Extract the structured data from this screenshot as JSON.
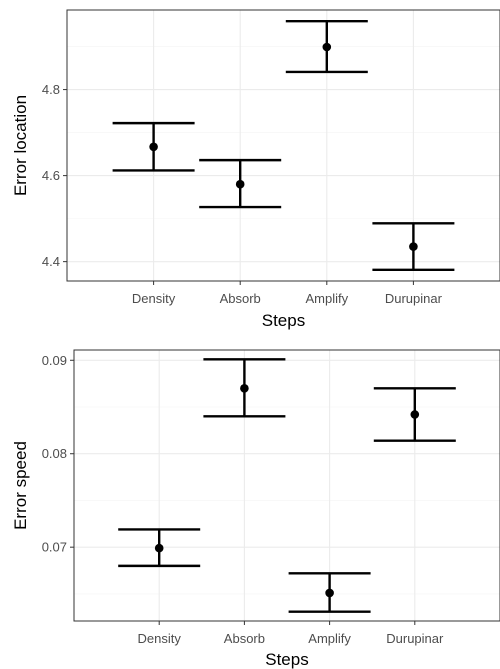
{
  "chart_data": [
    {
      "type": "scatter",
      "categories": [
        "Density",
        "Absorb",
        "Amplify",
        "Durupinar"
      ],
      "series": [
        {
          "values": [
            4.667,
            4.58,
            4.899,
            4.435
          ],
          "lower": [
            4.612,
            4.527,
            4.841,
            4.381
          ],
          "upper": [
            4.722,
            4.636,
            4.959,
            4.489
          ]
        }
      ],
      "title": "",
      "xlabel": "Steps",
      "ylabel": "Error location",
      "ylim": [
        4.355,
        4.985
      ],
      "yticks": [
        4.4,
        4.6,
        4.8
      ],
      "ytick_labels": [
        "4.4",
        "4.6",
        "4.8"
      ],
      "grid": true,
      "legend": "none",
      "error_bars": true
    },
    {
      "type": "scatter",
      "categories": [
        "Density",
        "Absorb",
        "Amplify",
        "Durupinar"
      ],
      "series": [
        {
          "values": [
            0.0699,
            0.087,
            0.0651,
            0.0842
          ],
          "lower": [
            0.068,
            0.084,
            0.0631,
            0.0814
          ],
          "upper": [
            0.0719,
            0.0901,
            0.0672,
            0.087
          ]
        }
      ],
      "title": "",
      "xlabel": "Steps",
      "ylabel": "Error speed",
      "ylim": [
        0.0621,
        0.0911
      ],
      "yticks": [
        0.07,
        0.08,
        0.09
      ],
      "ytick_labels": [
        "0.07",
        "0.08",
        "0.09"
      ],
      "grid": true,
      "legend": "none",
      "error_bars": true
    }
  ],
  "colors": {
    "points": "#000000",
    "grid": "#ebebeb",
    "border": "#333333",
    "tick_text": "#4d4d4d"
  }
}
